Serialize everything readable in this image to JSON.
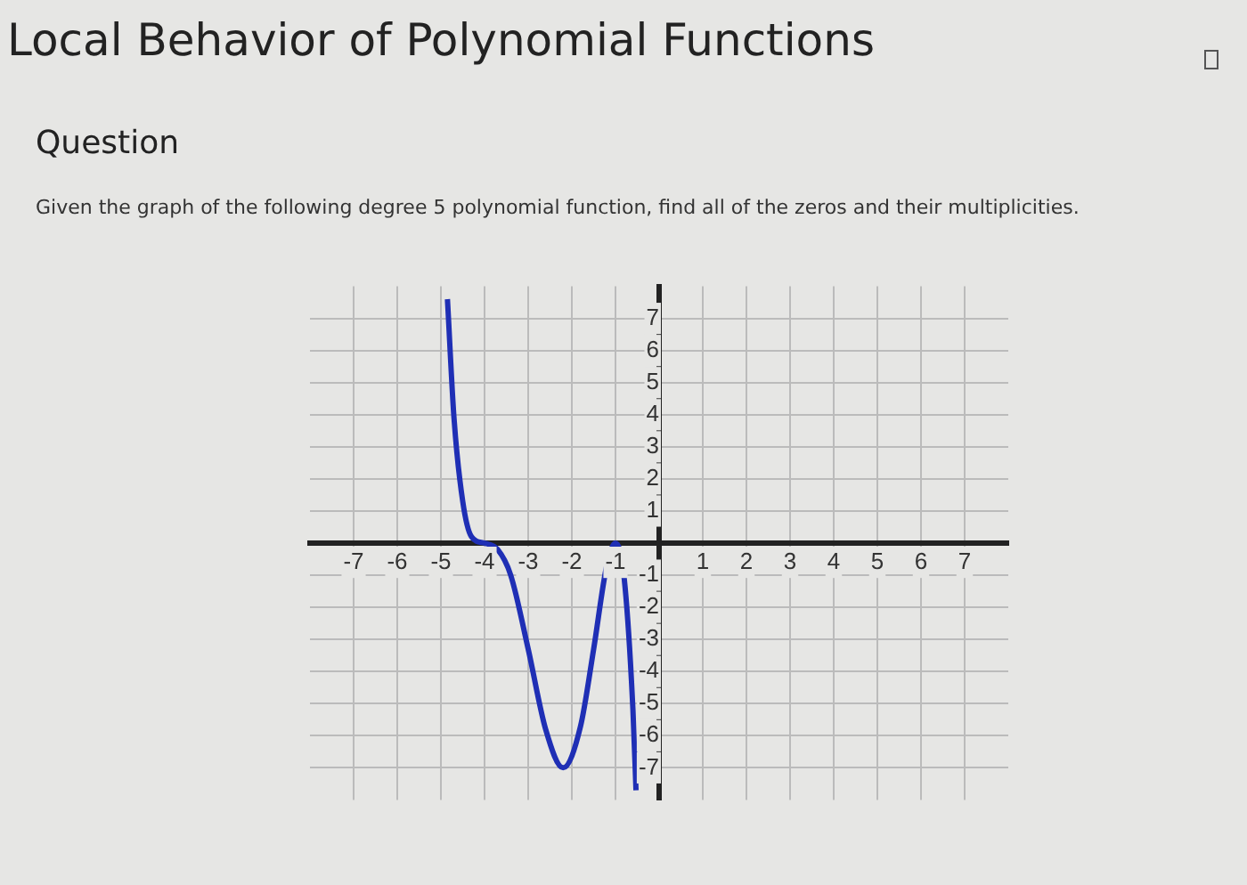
{
  "chart_data": {
    "type": "line",
    "title": "Local Behavior of Polynomial Functions",
    "subtitle": "Question",
    "annotations": [
      "Given the graph of the following degree 5 polynomial function, find all of the zeros and their multiplicities."
    ],
    "x": [
      -4.85,
      -4.7,
      -4.5,
      -4.3,
      -4.0,
      -3.7,
      -3.4,
      -3.0,
      -2.6,
      -2.2,
      -1.8,
      -1.5,
      -1.2,
      -1.0,
      -0.8,
      -0.6,
      -0.53
    ],
    "series": [
      {
        "color": "#1f2fb5",
        "values": [
          7.6,
          3.9,
          1.3,
          0.2,
          0,
          -0.2,
          -1.0,
          -3.3,
          -5.8,
          -7.0,
          -5.7,
          -3.3,
          -0.7,
          0,
          -1.1,
          -5.2,
          -7.7
        ]
      }
    ],
    "xlim": [
      -8,
      8
    ],
    "ylim": [
      -8,
      8
    ],
    "xticks": [
      -7,
      -6,
      -5,
      -4,
      -3,
      -2,
      -1,
      1,
      2,
      3,
      4,
      5,
      6,
      7
    ],
    "yticks": [
      -7,
      -6,
      -5,
      -4,
      -3,
      -2,
      -1,
      1,
      2,
      3,
      4,
      5,
      6,
      7
    ],
    "grid": true
  }
}
